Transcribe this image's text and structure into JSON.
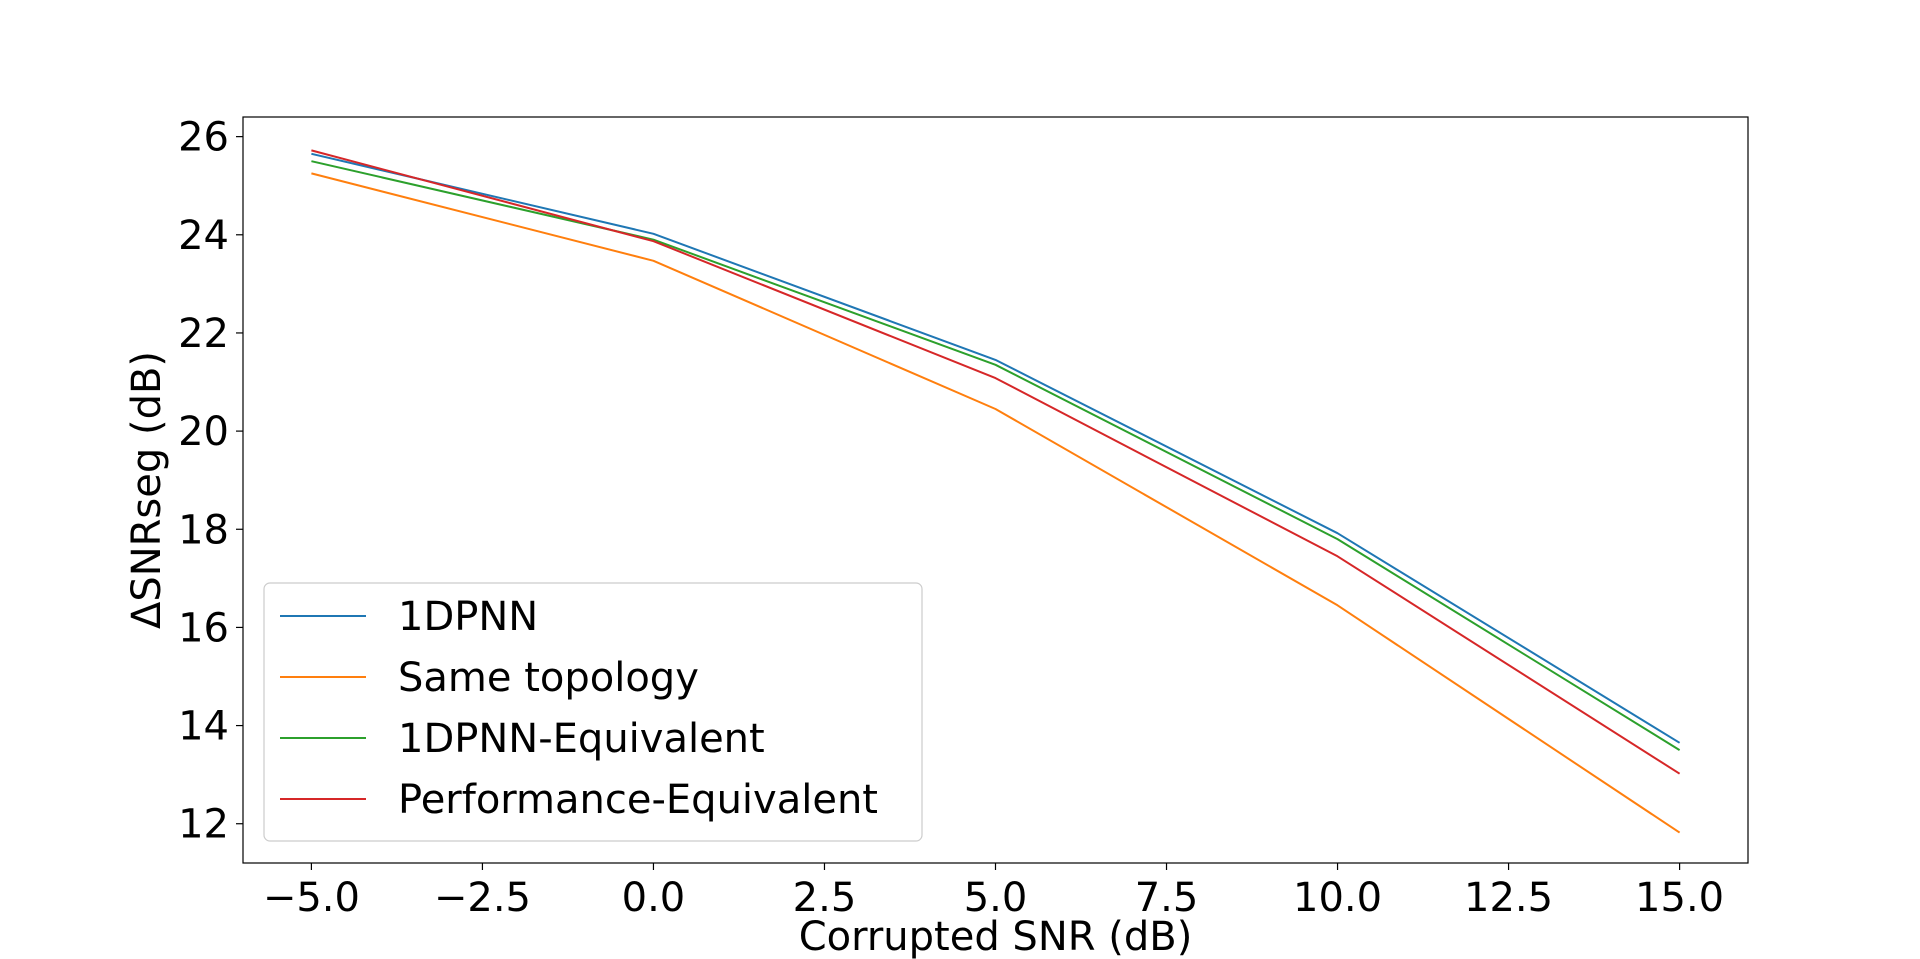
{
  "chart_data": {
    "type": "line",
    "xlabel": "Corrupted SNR (dB)",
    "ylabel": "ΔSNRseg (dB)",
    "xlim": [
      -6.0,
      16.0
    ],
    "ylim": [
      11.2,
      26.4
    ],
    "xticks": [
      -5.0,
      -2.5,
      0.0,
      2.5,
      5.0,
      7.5,
      10.0,
      12.5,
      15.0
    ],
    "xtick_labels": [
      "−5.0",
      "−2.5",
      "0.0",
      "2.5",
      "5.0",
      "7.5",
      "10.0",
      "12.5",
      "15.0"
    ],
    "yticks": [
      12,
      14,
      16,
      18,
      20,
      22,
      24,
      26
    ],
    "ytick_labels": [
      "12",
      "14",
      "16",
      "18",
      "20",
      "22",
      "24",
      "26"
    ],
    "grid": false,
    "legend_position": "lower-left",
    "x": [
      -5,
      0,
      5,
      10,
      15
    ],
    "series": [
      {
        "name": "1DPNN",
        "color": "#1f77b4",
        "values": [
          25.65,
          24.02,
          21.45,
          17.92,
          13.65
        ]
      },
      {
        "name": "Same topology",
        "color": "#ff7f0e",
        "values": [
          25.25,
          23.47,
          20.45,
          16.45,
          11.82
        ]
      },
      {
        "name": "1DPNN-Equivalent",
        "color": "#2ca02c",
        "values": [
          25.5,
          23.9,
          21.35,
          17.8,
          13.5
        ]
      },
      {
        "name": "Performance-Equivalent",
        "color": "#d62728",
        "values": [
          25.72,
          23.87,
          21.08,
          17.45,
          13.02
        ]
      }
    ]
  }
}
